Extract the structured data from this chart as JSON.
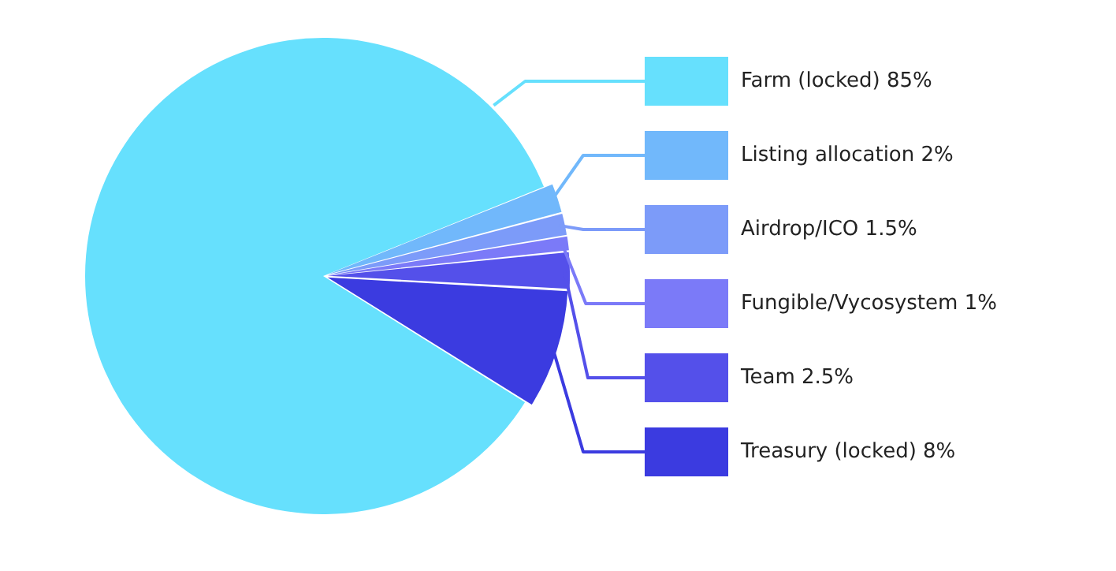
{
  "chart_data": {
    "type": "pie",
    "categories": [
      "Farm (locked)",
      "Listing allocation",
      "Airdrop/ICO",
      "Fungible/Vycosystem",
      "Team",
      "Treasury (locked)"
    ],
    "values": [
      85,
      2,
      1.5,
      1,
      2.5,
      8
    ],
    "value_labels": [
      "85%",
      "2%",
      "1.5%",
      "1%",
      "2.5%",
      "8%"
    ],
    "colors": [
      "#66e0fd",
      "#71b8fb",
      "#7c9bf9",
      "#7b7af8",
      "#5450ea",
      "#3b3be0"
    ],
    "legend": "right"
  }
}
